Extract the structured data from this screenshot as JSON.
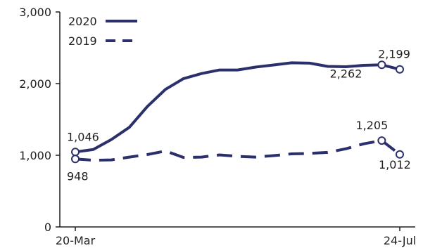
{
  "chart_data": {
    "type": "line",
    "title": "",
    "xlabel": "",
    "ylabel": "",
    "ylim": [
      0,
      3000
    ],
    "yticks": [
      0,
      1000,
      2000,
      3000
    ],
    "ytick_labels": [
      "0",
      "1,000",
      "2,000",
      "3,000"
    ],
    "xtick_labels": [
      "20-Mar",
      "24-Jul"
    ],
    "grid": false,
    "legend_position": "top-left",
    "colors": {
      "line": "#2b2f6b"
    },
    "series": [
      {
        "name": "2020",
        "style": "solid",
        "x": [
          "2020-03-20",
          "2020-03-27",
          "2020-04-03",
          "2020-04-10",
          "2020-04-17",
          "2020-04-24",
          "2020-05-01",
          "2020-05-08",
          "2020-05-15",
          "2020-05-22",
          "2020-05-29",
          "2020-06-05",
          "2020-06-12",
          "2020-06-19",
          "2020-06-26",
          "2020-07-03",
          "2020-07-10",
          "2020-07-17",
          "2020-07-24"
        ],
        "values": [
          1046,
          1080,
          1220,
          1390,
          1680,
          1920,
          2070,
          2140,
          2190,
          2190,
          2230,
          2260,
          2290,
          2285,
          2240,
          2235,
          2255,
          2262,
          2199
        ]
      },
      {
        "name": "2019",
        "style": "dashed",
        "x": [
          "2020-03-20",
          "2020-03-27",
          "2020-04-03",
          "2020-04-10",
          "2020-04-17",
          "2020-04-24",
          "2020-05-01",
          "2020-05-08",
          "2020-05-15",
          "2020-05-22",
          "2020-05-29",
          "2020-06-05",
          "2020-06-12",
          "2020-06-19",
          "2020-06-26",
          "2020-07-03",
          "2020-07-10",
          "2020-07-17",
          "2020-07-24"
        ],
        "values": [
          948,
          930,
          935,
          975,
          1010,
          1060,
          970,
          975,
          1005,
          985,
          975,
          995,
          1020,
          1025,
          1040,
          1090,
          1160,
          1205,
          1012
        ]
      }
    ],
    "annotations": [
      {
        "series": "2020",
        "x": "2020-03-20",
        "label": "1,046"
      },
      {
        "series": "2020",
        "x": "2020-07-17",
        "label": "2,262"
      },
      {
        "series": "2020",
        "x": "2020-07-24",
        "label": "2,199"
      },
      {
        "series": "2019",
        "x": "2020-03-20",
        "label": "948"
      },
      {
        "series": "2019",
        "x": "2020-07-17",
        "label": "1,205"
      },
      {
        "series": "2019",
        "x": "2020-07-24",
        "label": "1,012"
      }
    ]
  }
}
